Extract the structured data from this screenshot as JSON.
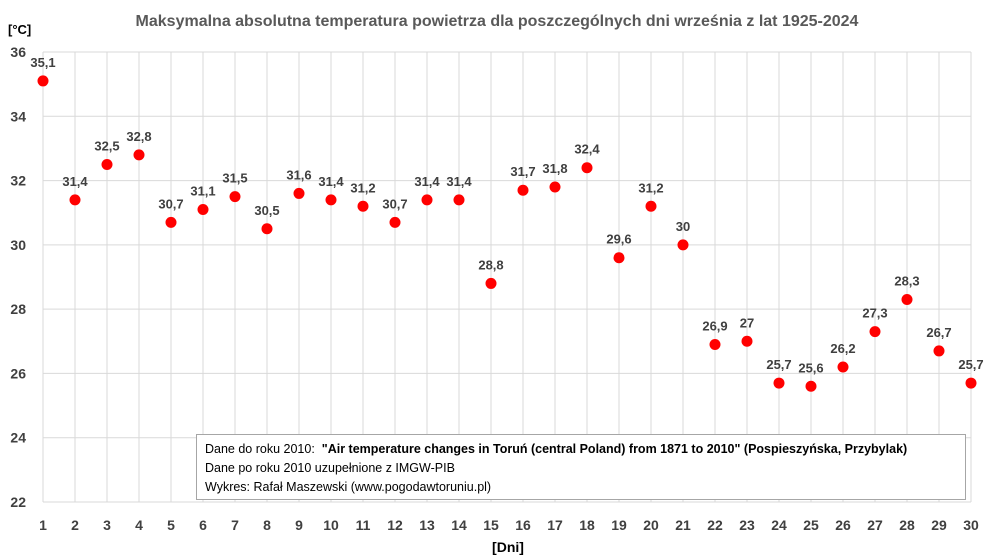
{
  "chart_data": {
    "type": "scatter",
    "title": "Maksymalna absolutna temperatura powietrza dla poszczególnych dni września z lat 1925-2024",
    "ylabel": "[°C]",
    "xlabel": "[Dni]",
    "ylim": [
      22,
      36
    ],
    "yticks": [
      "22",
      "24",
      "26",
      "28",
      "30",
      "32",
      "34",
      "36"
    ],
    "grid": true,
    "x": [
      1,
      2,
      3,
      4,
      5,
      6,
      7,
      8,
      9,
      10,
      11,
      12,
      13,
      14,
      15,
      16,
      17,
      18,
      19,
      20,
      21,
      22,
      23,
      24,
      25,
      26,
      27,
      28,
      29,
      30
    ],
    "values": [
      35.1,
      31.4,
      32.5,
      32.8,
      30.7,
      31.1,
      31.5,
      30.5,
      31.6,
      31.4,
      31.2,
      30.7,
      31.4,
      31.4,
      28.8,
      31.7,
      31.8,
      32.4,
      29.6,
      31.2,
      30,
      26.9,
      27,
      25.7,
      25.6,
      26.2,
      27.3,
      28.3,
      26.7,
      25.7
    ],
    "labels": [
      "35,1",
      "31,4",
      "32,5",
      "32,8",
      "30,7",
      "31,1",
      "31,5",
      "30,5",
      "31,6",
      "31,4",
      "31,2",
      "30,7",
      "31,4",
      "31,4",
      "28,8",
      "31,7",
      "31,8",
      "32,4",
      "29,6",
      "31,2",
      "30",
      "26,9",
      "27",
      "25,7",
      "25,6",
      "26,2",
      "27,3",
      "28,3",
      "26,7",
      "25,7"
    ],
    "marker_color": "#ff0000"
  },
  "note": {
    "line1_prefix": "Dane do roku 2010:",
    "line1_bold": "\"Air temperature changes in Toruń (central Poland) from 1871  to 2010\" (Pospieszyńska, Przybylak)",
    "line2": "Dane po roku 2010  uzupełnione z IMGW-PIB",
    "line3": "Wykres: Rafał Maszewski (www.pogodawtoruniu.pl)"
  }
}
